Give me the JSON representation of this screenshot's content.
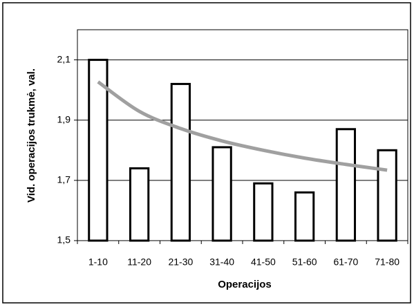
{
  "chart_data": {
    "type": "bar",
    "y_label": "Vid. operacijos trukmė, val.",
    "x_label": "Operacijos",
    "categories": [
      "1-10",
      "11-20",
      "21-30",
      "31-40",
      "41-50",
      "51-60",
      "61-70",
      "71-80"
    ],
    "values": [
      2.1,
      1.74,
      2.02,
      1.81,
      1.69,
      1.66,
      1.87,
      1.8
    ],
    "color": "#ffffff",
    "trendline": {
      "values": [
        2.027,
        1.929,
        1.872,
        1.831,
        1.8,
        1.774,
        1.753,
        1.734
      ],
      "color": "#a0a0a0"
    },
    "ylim": [
      1.5,
      2.2
    ],
    "yticks": [
      {
        "value": 1.5,
        "label": "1,5"
      },
      {
        "value": 1.7,
        "label": "1,7"
      },
      {
        "value": 1.9,
        "label": "1,9"
      },
      {
        "value": 2.1,
        "label": "2,1"
      }
    ],
    "grid": true
  }
}
